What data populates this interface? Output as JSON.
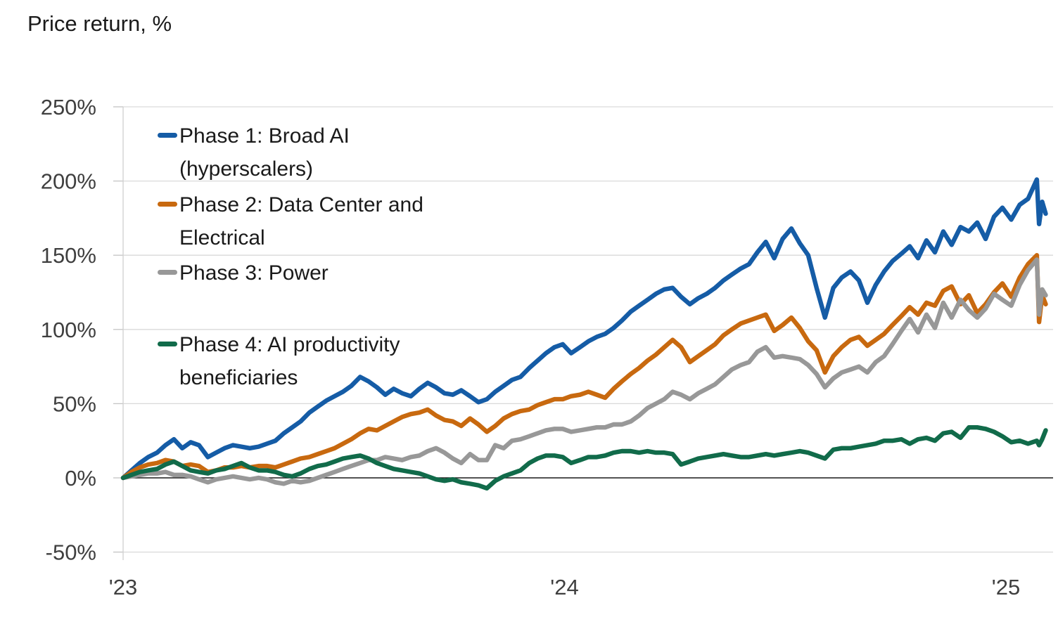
{
  "chart_data": {
    "type": "line",
    "title": "Price return, %",
    "x_axis": {
      "tick_values": [
        2023,
        2024,
        2025
      ],
      "tick_labels": [
        "'23",
        "'24",
        "'25"
      ],
      "range": [
        2023.0,
        2025.1
      ]
    },
    "y_axis": {
      "tick_values": [
        250,
        200,
        150,
        100,
        50,
        0,
        -50
      ],
      "tick_labels": [
        "250%",
        "200%",
        "150%",
        "100%",
        "50%",
        "0%",
        "-50%"
      ],
      "range": [
        -50,
        250
      ],
      "zero_line": true
    },
    "grid": "horizontal-light",
    "legend_position": "inside-top-left",
    "x": [
      2023.0,
      2023.019,
      2023.038,
      2023.057,
      2023.077,
      2023.096,
      2023.115,
      2023.134,
      2023.153,
      2023.172,
      2023.192,
      2023.211,
      2023.23,
      2023.249,
      2023.268,
      2023.287,
      2023.307,
      2023.326,
      2023.345,
      2023.364,
      2023.383,
      2023.402,
      2023.422,
      2023.441,
      2023.46,
      2023.479,
      2023.498,
      2023.517,
      2023.537,
      2023.556,
      2023.575,
      2023.594,
      2023.613,
      2023.632,
      2023.652,
      2023.671,
      2023.69,
      2023.709,
      2023.728,
      2023.747,
      2023.766,
      2023.786,
      2023.805,
      2023.824,
      2023.843,
      2023.862,
      2023.881,
      2023.9,
      2023.92,
      2023.939,
      2023.958,
      2023.977,
      2023.996,
      2024.015,
      2024.035,
      2024.054,
      2024.073,
      2024.092,
      2024.111,
      2024.13,
      2024.15,
      2024.169,
      2024.188,
      2024.207,
      2024.226,
      2024.245,
      2024.264,
      2024.284,
      2024.303,
      2024.322,
      2024.341,
      2024.36,
      2024.379,
      2024.399,
      2024.418,
      2024.437,
      2024.456,
      2024.475,
      2024.494,
      2024.514,
      2024.533,
      2024.552,
      2024.571,
      2024.59,
      2024.609,
      2024.628,
      2024.648,
      2024.667,
      2024.686,
      2024.705,
      2024.724,
      2024.743,
      2024.763,
      2024.782,
      2024.801,
      2024.82,
      2024.839,
      2024.858,
      2024.877,
      2024.897,
      2024.916,
      2024.935,
      2024.954,
      2024.973,
      2024.992,
      2025.012,
      2025.031,
      2025.05,
      2025.07,
      2025.075,
      2025.082,
      2025.09
    ],
    "series": [
      {
        "name": "Phase 1: Broad AI (hyperscalers)",
        "legend_lines": [
          "Phase 1: Broad AI",
          "(hyperscalers)"
        ],
        "color": "#155ca6",
        "values": [
          0,
          5,
          10,
          14,
          17,
          22,
          26,
          20,
          24,
          22,
          14,
          17,
          20,
          22,
          21,
          20,
          21,
          23,
          25,
          30,
          34,
          38,
          44,
          48,
          52,
          55,
          58,
          62,
          68,
          65,
          61,
          56,
          60,
          57,
          55,
          60,
          64,
          61,
          57,
          56,
          59,
          55,
          51,
          53,
          58,
          62,
          66,
          68,
          74,
          79,
          84,
          88,
          90,
          84,
          88,
          92,
          95,
          97,
          101,
          106,
          112,
          116,
          120,
          124,
          127,
          128,
          122,
          117,
          121,
          124,
          128,
          133,
          137,
          141,
          144,
          152,
          159,
          148,
          161,
          168,
          158,
          150,
          128,
          108,
          128,
          135,
          139,
          133,
          118,
          130,
          139,
          146,
          151,
          156,
          148,
          160,
          152,
          166,
          157,
          169,
          166,
          172,
          161,
          176,
          182,
          174,
          184,
          188,
          201,
          171,
          186,
          178
        ]
      },
      {
        "name": "Phase 2: Data Center and Electrical",
        "legend_lines": [
          "Phase 2: Data Center and",
          "Electrical"
        ],
        "color": "#c8690f",
        "values": [
          0,
          4,
          7,
          9,
          10,
          12,
          11,
          8,
          9,
          8,
          4,
          5,
          7,
          7,
          8,
          7,
          8,
          8,
          7,
          9,
          11,
          13,
          14,
          16,
          18,
          20,
          23,
          26,
          30,
          33,
          32,
          35,
          38,
          41,
          43,
          44,
          46,
          42,
          39,
          38,
          35,
          40,
          36,
          31,
          35,
          40,
          43,
          45,
          46,
          49,
          51,
          53,
          53,
          55,
          56,
          58,
          56,
          54,
          60,
          65,
          70,
          74,
          79,
          83,
          88,
          93,
          88,
          78,
          82,
          86,
          90,
          96,
          100,
          104,
          106,
          108,
          110,
          99,
          103,
          108,
          101,
          92,
          86,
          71,
          82,
          88,
          93,
          95,
          89,
          93,
          97,
          103,
          109,
          115,
          110,
          118,
          116,
          126,
          129,
          117,
          123,
          111,
          117,
          125,
          131,
          122,
          135,
          144,
          150,
          105,
          123,
          117
        ]
      },
      {
        "name": "Phase 3: Power",
        "legend_lines": [
          "Phase 3: Power"
        ],
        "color": "#989898",
        "values": [
          0,
          1,
          2,
          3,
          3,
          4,
          2,
          2,
          1,
          -1,
          -3,
          -1,
          0,
          1,
          0,
          -1,
          0,
          -1,
          -3,
          -4,
          -2,
          -3,
          -2,
          0,
          2,
          4,
          6,
          8,
          10,
          12,
          12,
          14,
          13,
          12,
          14,
          15,
          18,
          20,
          17,
          13,
          10,
          16,
          12,
          12,
          22,
          20,
          25,
          26,
          28,
          30,
          32,
          33,
          33,
          31,
          32,
          33,
          34,
          34,
          36,
          36,
          38,
          42,
          47,
          50,
          53,
          58,
          56,
          53,
          57,
          60,
          63,
          68,
          73,
          76,
          78,
          85,
          88,
          81,
          82,
          81,
          80,
          76,
          70,
          61,
          67,
          71,
          73,
          75,
          71,
          78,
          82,
          90,
          99,
          107,
          98,
          110,
          101,
          118,
          108,
          120,
          113,
          108,
          114,
          124,
          120,
          116,
          130,
          140,
          147,
          110,
          127,
          123
        ]
      },
      {
        "name": "Phase 4: AI productivity beneficiaries",
        "legend_lines": [
          "Phase 4: AI productivity",
          "beneficiaries"
        ],
        "color": "#116b4a",
        "values": [
          0,
          2,
          4,
          5,
          6,
          9,
          11,
          8,
          5,
          4,
          3,
          5,
          6,
          8,
          10,
          7,
          5,
          5,
          4,
          2,
          1,
          3,
          6,
          8,
          9,
          11,
          13,
          14,
          15,
          13,
          10,
          8,
          6,
          5,
          4,
          3,
          1,
          -1,
          -2,
          -1,
          -3,
          -4,
          -5,
          -7,
          -2,
          1,
          3,
          5,
          10,
          13,
          15,
          15,
          14,
          10,
          12,
          14,
          14,
          15,
          17,
          18,
          18,
          17,
          18,
          17,
          17,
          16,
          9,
          11,
          13,
          14,
          15,
          16,
          15,
          14,
          14,
          15,
          16,
          15,
          16,
          17,
          18,
          17,
          15,
          13,
          19,
          20,
          20,
          21,
          22,
          23,
          25,
          25,
          26,
          23,
          26,
          27,
          25,
          30,
          31,
          27,
          34,
          34,
          33,
          31,
          28,
          24,
          25,
          23,
          25,
          22,
          26,
          32
        ]
      }
    ],
    "colors": {
      "gridline": "#d9d9d9",
      "axis_line": "#d0d0d0",
      "tick_mark": "#c4c4c4",
      "zero_line": "#1a1a1a",
      "axis_text": "#3f3f3f",
      "title_text": "#1a1a1a",
      "background": "#ffffff"
    }
  }
}
